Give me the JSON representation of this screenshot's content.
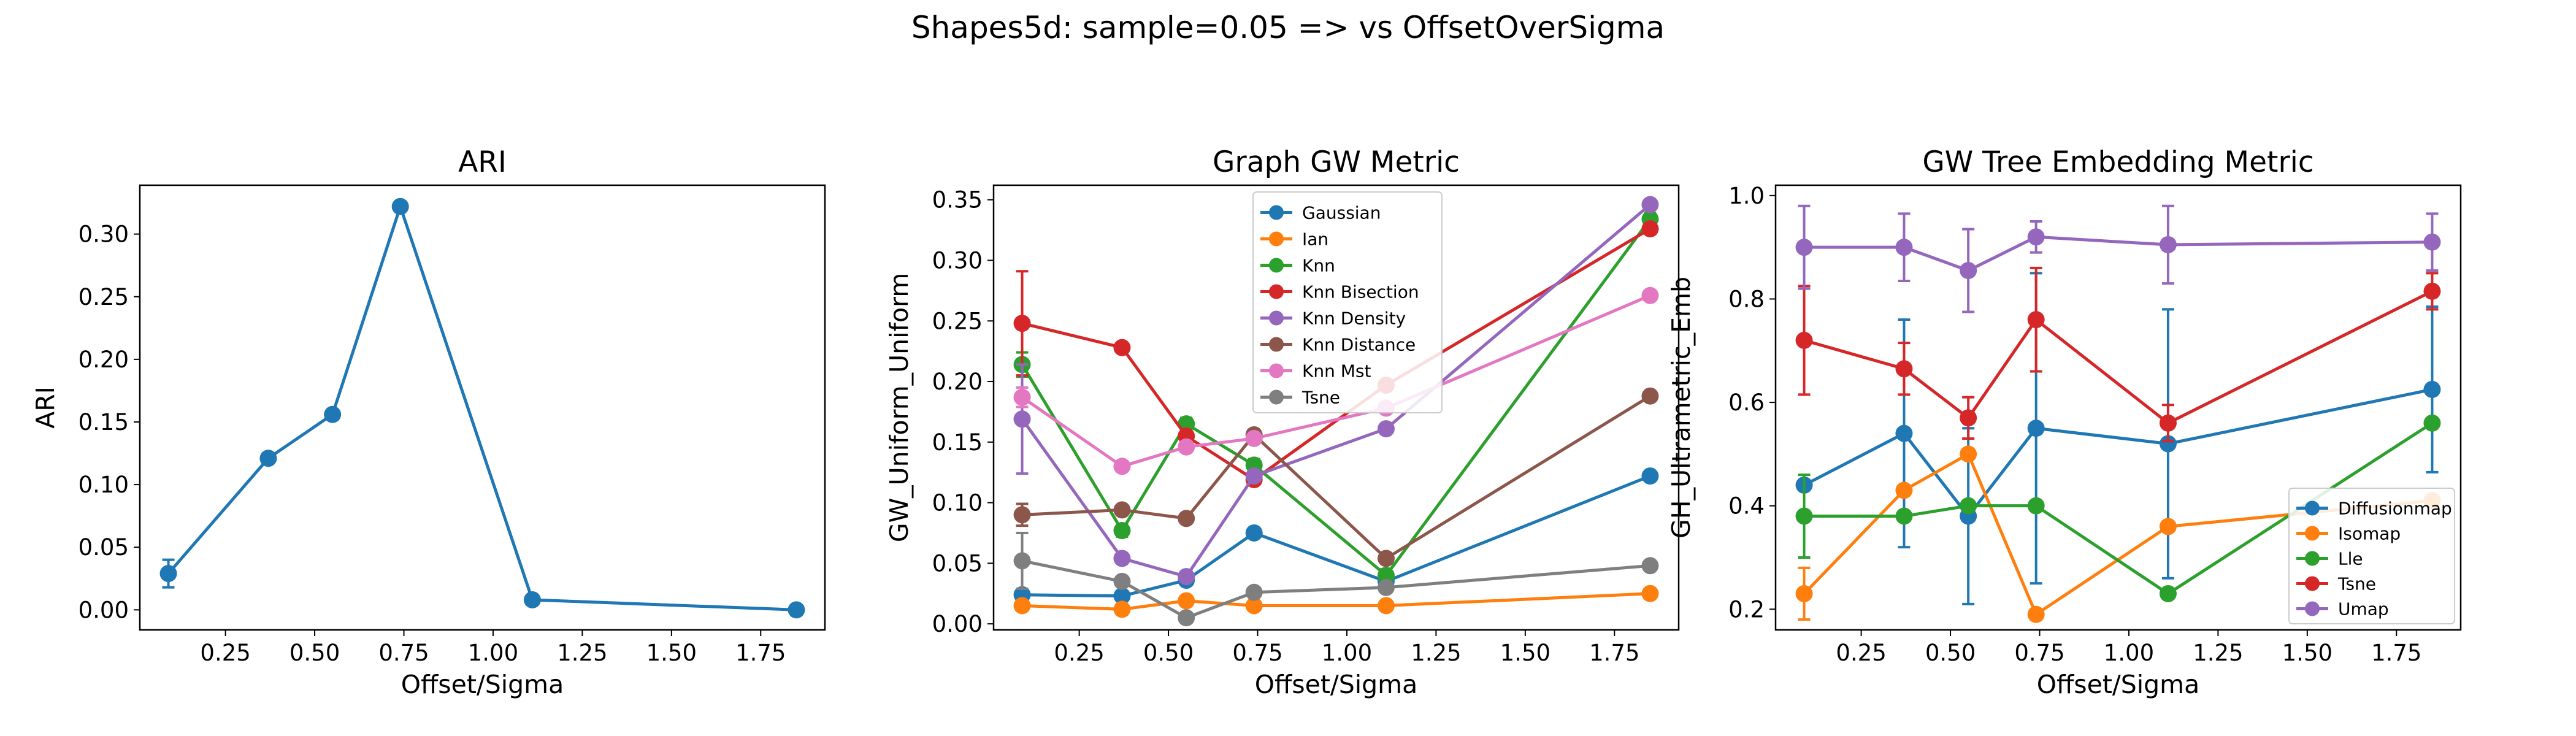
{
  "figure": {
    "title": "Shapes5d: sample=0.05 => vs OffsetOverSigma"
  },
  "chart_data": [
    {
      "type": "line",
      "title": "ARI",
      "xlabel": "Offset/Sigma",
      "ylabel": "ARI",
      "xlim": [
        0.01,
        1.93
      ],
      "ylim": [
        -0.016,
        0.339
      ],
      "xticks": [
        0.25,
        0.5,
        0.75,
        1.0,
        1.25,
        1.5,
        1.75
      ],
      "xtick_labels": [
        "0.25",
        "0.50",
        "0.75",
        "1.00",
        "1.25",
        "1.50",
        "1.75"
      ],
      "yticks": [
        0,
        0.05,
        0.1,
        0.15,
        0.2,
        0.25,
        0.3
      ],
      "ytick_labels": [
        "0.00",
        "0.05",
        "0.10",
        "0.15",
        "0.20",
        "0.25",
        "0.30"
      ],
      "grid": false,
      "legend": null,
      "x": [
        0.09,
        0.37,
        0.55,
        0.74,
        1.11,
        1.85
      ],
      "series": [
        {
          "color": "#1f77b4",
          "values": [
            0.029,
            0.121,
            0.156,
            0.322,
            0.008,
            0.0
          ],
          "err": [
            0.011,
            0,
            0,
            0,
            0,
            0
          ]
        }
      ]
    },
    {
      "type": "line",
      "title": "Graph GW Metric",
      "xlabel": "Offset/Sigma",
      "ylabel": "GW_Uniform_Uniform",
      "xlim": [
        0.01,
        1.93
      ],
      "ylim": [
        -0.005,
        0.362
      ],
      "xticks": [
        0.25,
        0.5,
        0.75,
        1.0,
        1.25,
        1.5,
        1.75
      ],
      "xtick_labels": [
        "0.25",
        "0.50",
        "0.75",
        "1.00",
        "1.25",
        "1.50",
        "1.75"
      ],
      "yticks": [
        0,
        0.05,
        0.1,
        0.15,
        0.2,
        0.25,
        0.3,
        0.35
      ],
      "ytick_labels": [
        "0.00",
        "0.05",
        "0.10",
        "0.15",
        "0.20",
        "0.25",
        "0.30",
        "0.35"
      ],
      "grid": false,
      "legend": "top-center",
      "x": [
        0.09,
        0.37,
        0.55,
        0.74,
        1.11,
        1.85
      ],
      "series": [
        {
          "name": "Gaussian",
          "color": "#1f77b4",
          "values": [
            0.024,
            0.023,
            0.036,
            0.075,
            0.035,
            0.122
          ],
          "err": [
            0,
            0,
            0,
            0,
            0,
            0
          ]
        },
        {
          "name": "Ian",
          "color": "#ff7f0e",
          "values": [
            0.015,
            0.012,
            0.019,
            0.015,
            0.015,
            0.025
          ],
          "err": [
            0,
            0,
            0,
            0,
            0,
            0
          ]
        },
        {
          "name": "Knn",
          "color": "#2ca02c",
          "values": [
            0.214,
            0.077,
            0.165,
            0.131,
            0.04,
            0.334
          ],
          "err": [
            0.01,
            0.005,
            0.005,
            0.005,
            0.005,
            0.005
          ]
        },
        {
          "name": "Knn Bisection",
          "color": "#d62728",
          "values": [
            0.248,
            0.228,
            0.155,
            0.119,
            0.197,
            0.326
          ],
          "err": [
            0.043,
            0,
            0,
            0,
            0,
            0
          ]
        },
        {
          "name": "Knn Density",
          "color": "#9467bd",
          "values": [
            0.169,
            0.054,
            0.039,
            0.122,
            0.161,
            0.346
          ],
          "err": [
            0.045,
            0,
            0,
            0,
            0,
            0
          ]
        },
        {
          "name": "Knn Distance",
          "color": "#8c564b",
          "values": [
            0.09,
            0.094,
            0.087,
            0.156,
            0.054,
            0.188
          ],
          "err": [
            0.009,
            0,
            0,
            0,
            0,
            0
          ]
        },
        {
          "name": "Knn Mst",
          "color": "#e377c2",
          "values": [
            0.187,
            0.13,
            0.146,
            0.153,
            0.178,
            0.271
          ],
          "err": [
            0.008,
            0,
            0,
            0,
            0,
            0
          ]
        },
        {
          "name": "Tsne",
          "color": "#7f7f7f",
          "values": [
            0.052,
            0.035,
            0.005,
            0.026,
            0.03,
            0.048
          ],
          "err": [
            0.023,
            0,
            0,
            0,
            0,
            0
          ]
        }
      ]
    },
    {
      "type": "line",
      "title": "GW Tree Embedding Metric",
      "xlabel": "Offset/Sigma",
      "ylabel": "GH_Ultrametric_Emb",
      "xlim": [
        0.01,
        1.93
      ],
      "ylim": [
        0.16,
        1.02
      ],
      "xticks": [
        0.25,
        0.5,
        0.75,
        1.0,
        1.25,
        1.5,
        1.75
      ],
      "xtick_labels": [
        "0.25",
        "0.50",
        "0.75",
        "1.00",
        "1.25",
        "1.50",
        "1.75"
      ],
      "yticks": [
        0.2,
        0.4,
        0.6,
        0.8,
        1.0
      ],
      "ytick_labels": [
        "0.2",
        "0.4",
        "0.6",
        "0.8",
        "1.0"
      ],
      "grid": false,
      "legend": "bottom-right",
      "x": [
        0.09,
        0.37,
        0.55,
        0.74,
        1.11,
        1.85
      ],
      "series": [
        {
          "name": "Diffusionmap",
          "color": "#1f77b4",
          "values": [
            0.44,
            0.54,
            0.38,
            0.55,
            0.52,
            0.625
          ],
          "err": [
            0.0,
            0.22,
            0.17,
            0.3,
            0.26,
            0.16
          ]
        },
        {
          "name": "Isomap",
          "color": "#ff7f0e",
          "values": [
            0.23,
            0.43,
            0.5,
            0.19,
            0.36,
            0.41
          ],
          "err": [
            0.05,
            0,
            0,
            0,
            0,
            0
          ]
        },
        {
          "name": "Lle",
          "color": "#2ca02c",
          "values": [
            0.38,
            0.38,
            0.4,
            0.4,
            0.23,
            0.56
          ],
          "err": [
            0.08,
            0,
            0,
            0,
            0,
            0
          ]
        },
        {
          "name": "Tsne",
          "color": "#d62728",
          "values": [
            0.72,
            0.665,
            0.57,
            0.76,
            0.56,
            0.815
          ],
          "err": [
            0.105,
            0.05,
            0.04,
            0.1,
            0.035,
            0.035
          ]
        },
        {
          "name": "Umap",
          "color": "#9467bd",
          "values": [
            0.9,
            0.9,
            0.855,
            0.92,
            0.905,
            0.91
          ],
          "err": [
            0.08,
            0.065,
            0.08,
            0.03,
            0.075,
            0.055
          ]
        }
      ]
    }
  ]
}
